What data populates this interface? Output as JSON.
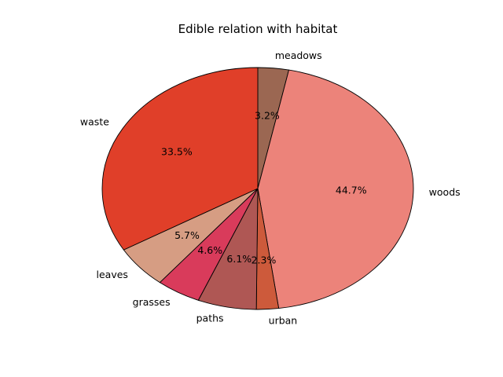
{
  "chart_data": {
    "type": "pie",
    "title": "Edible relation with habitat",
    "categories": [
      "meadows",
      "woods",
      "urban",
      "paths",
      "grasses",
      "leaves",
      "waste"
    ],
    "values": [
      3.2,
      44.7,
      2.3,
      6.1,
      4.6,
      5.7,
      33.5
    ],
    "labels": [
      "3.2%",
      "44.7%",
      "2.3%",
      "6.1%",
      "4.6%",
      "5.7%",
      "33.5%"
    ],
    "colors": [
      "#9b6752",
      "#ec837a",
      "#cd5a3b",
      "#af5754",
      "#d93b5b",
      "#d69d83",
      "#e03f29"
    ],
    "start_angle_deg": 90,
    "direction": "clockwise",
    "edge_color": "#000000"
  }
}
